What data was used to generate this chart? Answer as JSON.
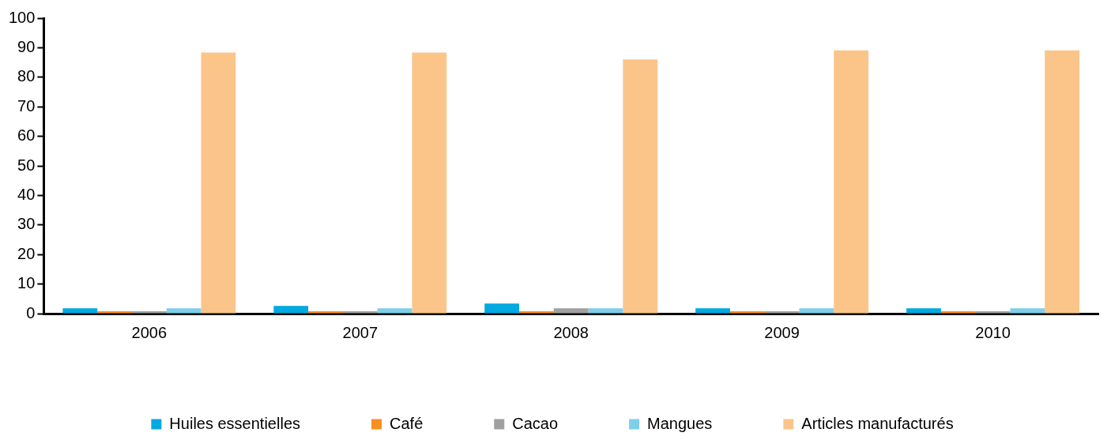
{
  "chart_data": {
    "type": "bar",
    "categories": [
      "2006",
      "2007",
      "2008",
      "2009",
      "2010"
    ],
    "series": [
      {
        "name": "Huiles essentielles",
        "color": "#00a9e0",
        "values": [
          1.8,
          2.6,
          3.4,
          1.8,
          1.8
        ]
      },
      {
        "name": "Café",
        "color": "#f7901e",
        "values": [
          0.8,
          0.8,
          0.8,
          0.8,
          0.8
        ]
      },
      {
        "name": "Cacao",
        "color": "#a0a0a0",
        "values": [
          0.8,
          0.8,
          1.8,
          0.8,
          0.8
        ]
      },
      {
        "name": "Mangues",
        "color": "#7fcfea",
        "values": [
          1.8,
          1.8,
          1.8,
          1.8,
          1.8
        ]
      },
      {
        "name": "Articles manufacturés",
        "color": "#fbc58a",
        "values": [
          88.4,
          88.4,
          86.0,
          89.1,
          89.1
        ]
      }
    ],
    "ylim": [
      0,
      100
    ],
    "yticks": [
      0,
      10,
      20,
      30,
      40,
      50,
      60,
      70,
      80,
      90,
      100
    ],
    "grid": false,
    "legend": "bottom"
  }
}
